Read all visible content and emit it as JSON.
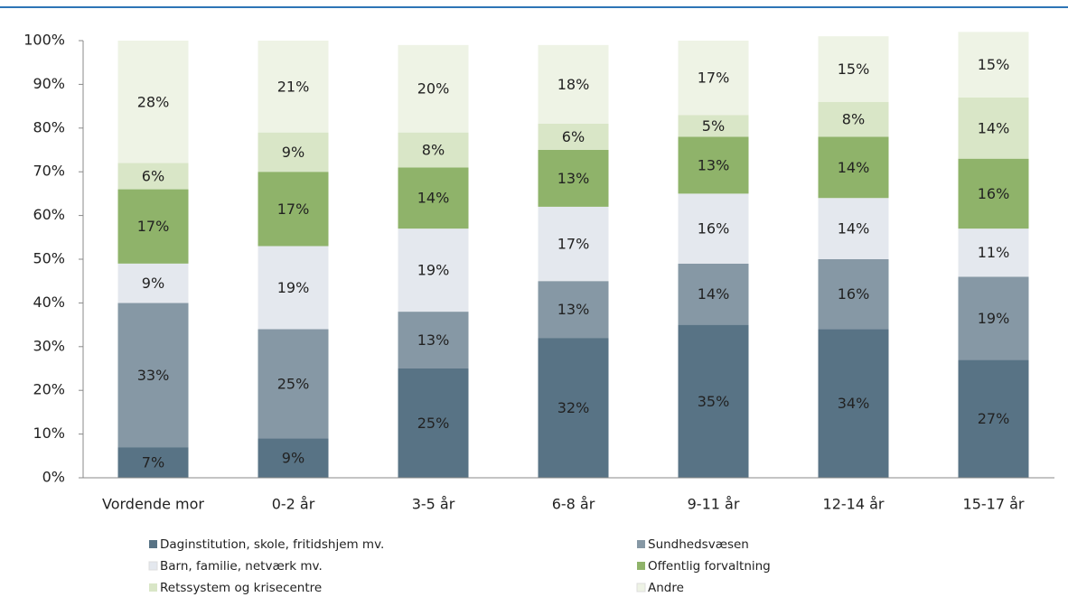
{
  "chart_data": {
    "type": "stacked_bar",
    "categories": [
      "Vordende mor",
      "0-2 år",
      "3-5 år",
      "6-8 år",
      "9-11 år",
      "12-14 år",
      "15-17 år"
    ],
    "series": [
      {
        "name": "Daginstitution, skole, fritidshjem mv.",
        "color": "#587385",
        "values": [
          7,
          9,
          25,
          32,
          35,
          34,
          27
        ],
        "value_labels": [
          "7%",
          "9%",
          "25%",
          "32%",
          "35%",
          "34%",
          "27%"
        ]
      },
      {
        "name": "Sundhedsvæsen",
        "color": "#8698a5",
        "values": [
          33,
          25,
          13,
          13,
          14,
          16,
          19
        ],
        "value_labels": [
          "33%",
          "25%",
          "13%",
          "13%",
          "14%",
          "16%",
          "19%"
        ]
      },
      {
        "name": "Barn, familie, netværk mv.",
        "color": "#e4e8ee",
        "values": [
          9,
          19,
          19,
          17,
          16,
          14,
          11
        ],
        "value_labels": [
          "9%",
          "19%",
          "19%",
          "17%",
          "16%",
          "14%",
          "11%"
        ]
      },
      {
        "name": "Offentlig forvaltning",
        "color": "#8fb36a",
        "values": [
          17,
          17,
          14,
          13,
          13,
          14,
          16
        ],
        "value_labels": [
          "17%",
          "17%",
          "14%",
          "13%",
          "13%",
          "14%",
          "16%"
        ]
      },
      {
        "name": "Retssystem og krisecentre",
        "color": "#d9e6c7",
        "values": [
          6,
          9,
          8,
          6,
          5,
          8,
          14
        ],
        "value_labels": [
          "6%",
          "9%",
          "8%",
          "6%",
          "5%",
          "8%",
          "14%"
        ]
      },
      {
        "name": "Andre",
        "color": "#eef3e5",
        "values": [
          28,
          21,
          20,
          18,
          17,
          15,
          15
        ],
        "value_labels": [
          "28%",
          "21%",
          "20%",
          "18%",
          "17%",
          "15%",
          "15%"
        ]
      }
    ],
    "ylim": [
      0,
      100
    ],
    "yticks": [
      {
        "value": 0,
        "label": "0%"
      },
      {
        "value": 10,
        "label": "10%"
      },
      {
        "value": 20,
        "label": "20%"
      },
      {
        "value": 30,
        "label": "30%"
      },
      {
        "value": 40,
        "label": "40%"
      },
      {
        "value": 50,
        "label": "50%"
      },
      {
        "value": 60,
        "label": "60%"
      },
      {
        "value": 70,
        "label": "70%"
      },
      {
        "value": 80,
        "label": "80%"
      },
      {
        "value": 90,
        "label": "90%"
      },
      {
        "value": 100,
        "label": "100%"
      }
    ],
    "grid": false
  }
}
